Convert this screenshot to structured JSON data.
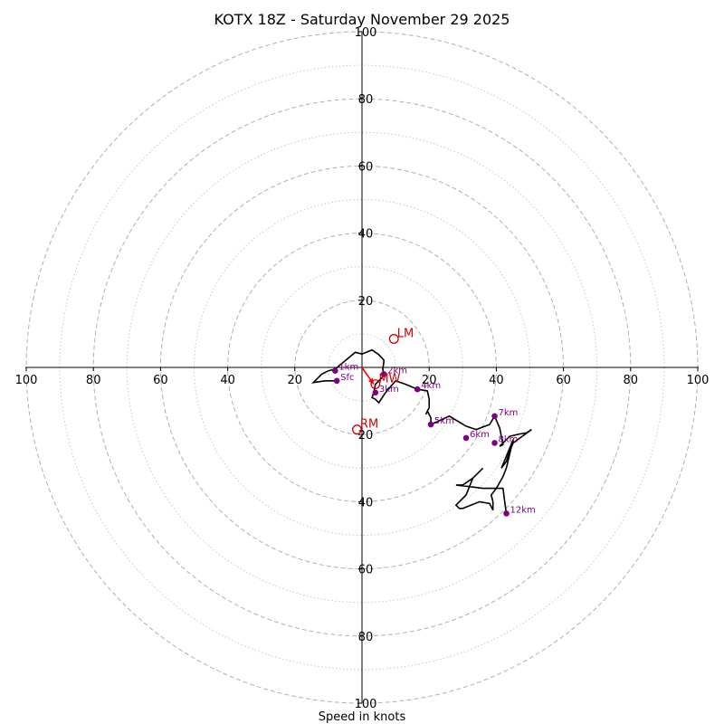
{
  "chart_data": {
    "type": "hodograph",
    "title": "KOTX 18Z - Saturday November 29 2025",
    "xlabel": "Speed in knots",
    "rings_major": [
      20,
      40,
      60,
      80,
      100
    ],
    "rings_minor": [
      10,
      30,
      50,
      70,
      90
    ],
    "range": 100,
    "x_ticks": [
      {
        "v": -100,
        "label": "100"
      },
      {
        "v": -80,
        "label": "80"
      },
      {
        "v": -60,
        "label": "60"
      },
      {
        "v": -40,
        "label": "40"
      },
      {
        "v": -20,
        "label": "20"
      },
      {
        "v": 20,
        "label": "20"
      },
      {
        "v": 40,
        "label": "40"
      },
      {
        "v": 60,
        "label": "60"
      },
      {
        "v": 80,
        "label": "80"
      },
      {
        "v": 100,
        "label": "100"
      }
    ],
    "y_ticks": [
      {
        "v": 100,
        "label": "100"
      },
      {
        "v": 80,
        "label": "80"
      },
      {
        "v": 60,
        "label": "60"
      },
      {
        "v": 40,
        "label": "40"
      },
      {
        "v": 20,
        "label": "20"
      },
      {
        "v": -20,
        "label": "20"
      },
      {
        "v": -40,
        "label": "40"
      },
      {
        "v": -60,
        "label": "60"
      },
      {
        "v": -80,
        "label": "80"
      },
      {
        "v": -100,
        "label": "100"
      }
    ],
    "hodograph_trace": [
      [
        -7.5,
        -4
      ],
      [
        -11,
        -4
      ],
      [
        -14.5,
        -4.5
      ],
      [
        -12,
        -2
      ],
      [
        -10,
        -1
      ],
      [
        -8,
        -0.5
      ],
      [
        -2,
        4.5
      ],
      [
        0,
        4
      ],
      [
        3,
        5.2
      ],
      [
        5,
        3.8
      ],
      [
        6.5,
        2.2
      ],
      [
        6.5,
        1.5
      ],
      [
        6.2,
        -0.4
      ],
      [
        6.5,
        -2.2
      ],
      [
        6,
        -3
      ],
      [
        4,
        -5
      ],
      [
        3.5,
        -7.5
      ],
      [
        3,
        -9
      ],
      [
        4,
        -9.5
      ],
      [
        5,
        -10.5
      ],
      [
        7,
        -7.5
      ],
      [
        10,
        -4
      ],
      [
        13,
        -5
      ],
      [
        16.5,
        -6.5
      ],
      [
        19.5,
        -7
      ],
      [
        20,
        -9.5
      ],
      [
        20,
        -12
      ],
      [
        19,
        -14
      ],
      [
        19.5,
        -13
      ],
      [
        20.5,
        -15
      ],
      [
        20.5,
        -17
      ],
      [
        26,
        -14.5
      ],
      [
        31,
        -17.5
      ],
      [
        34,
        -18.5
      ],
      [
        38,
        -17
      ],
      [
        39.5,
        -14.5
      ],
      [
        41,
        -18
      ],
      [
        42,
        -23
      ],
      [
        41,
        -23.5
      ],
      [
        44,
        -20.5
      ],
      [
        47,
        -19.8
      ],
      [
        49,
        -19.5
      ],
      [
        50.5,
        -18.5
      ],
      [
        45,
        -22.5
      ],
      [
        44,
        -25
      ],
      [
        43,
        -28
      ],
      [
        41.5,
        -30
      ],
      [
        43,
        -26.5
      ],
      [
        45,
        -21.5
      ],
      [
        43,
        -30
      ],
      [
        42,
        -32.5
      ],
      [
        40,
        -36
      ],
      [
        38.5,
        -38
      ],
      [
        39,
        -40
      ],
      [
        39,
        -42.5
      ],
      [
        38,
        -40.5
      ],
      [
        35,
        -40
      ],
      [
        30,
        -42
      ],
      [
        29,
        -42
      ],
      [
        28,
        -41
      ],
      [
        31,
        -38
      ],
      [
        33,
        -33
      ],
      [
        36,
        -30
      ],
      [
        33,
        -33
      ],
      [
        30,
        -35
      ],
      [
        28,
        -35
      ],
      [
        32,
        -35.5
      ],
      [
        36,
        -36
      ],
      [
        41,
        -36
      ],
      [
        42,
        -36
      ],
      [
        42.5,
        -40
      ],
      [
        43,
        -43.5
      ]
    ],
    "height_markers": [
      {
        "label": "Sfc",
        "u": -7.5,
        "v": -4
      },
      {
        "label": "1km",
        "u": -8,
        "v": -1
      },
      {
        "label": "2km",
        "u": 6.5,
        "v": -2
      },
      {
        "label": "3km",
        "u": 4,
        "v": -7.5
      },
      {
        "label": "4km",
        "u": 16.5,
        "v": -6.5
      },
      {
        "label": "5km",
        "u": 20.5,
        "v": -17
      },
      {
        "label": "6km",
        "u": 31,
        "v": -21
      },
      {
        "label": "7km",
        "u": 39.5,
        "v": -14.5
      },
      {
        "label": "8km",
        "u": 39.5,
        "v": -22.5
      },
      {
        "label": "12km",
        "u": 43,
        "v": -43.5
      }
    ],
    "storm_motion": [
      {
        "label": "LM",
        "u": 9.5,
        "v": 8.5
      },
      {
        "label": "MW",
        "u": 4,
        "v": -5
      },
      {
        "label": "RM",
        "u": -1.5,
        "v": -18.5
      }
    ],
    "shear_arrow": {
      "from": [
        0,
        0
      ],
      "to": [
        3.5,
        -5
      ]
    }
  }
}
